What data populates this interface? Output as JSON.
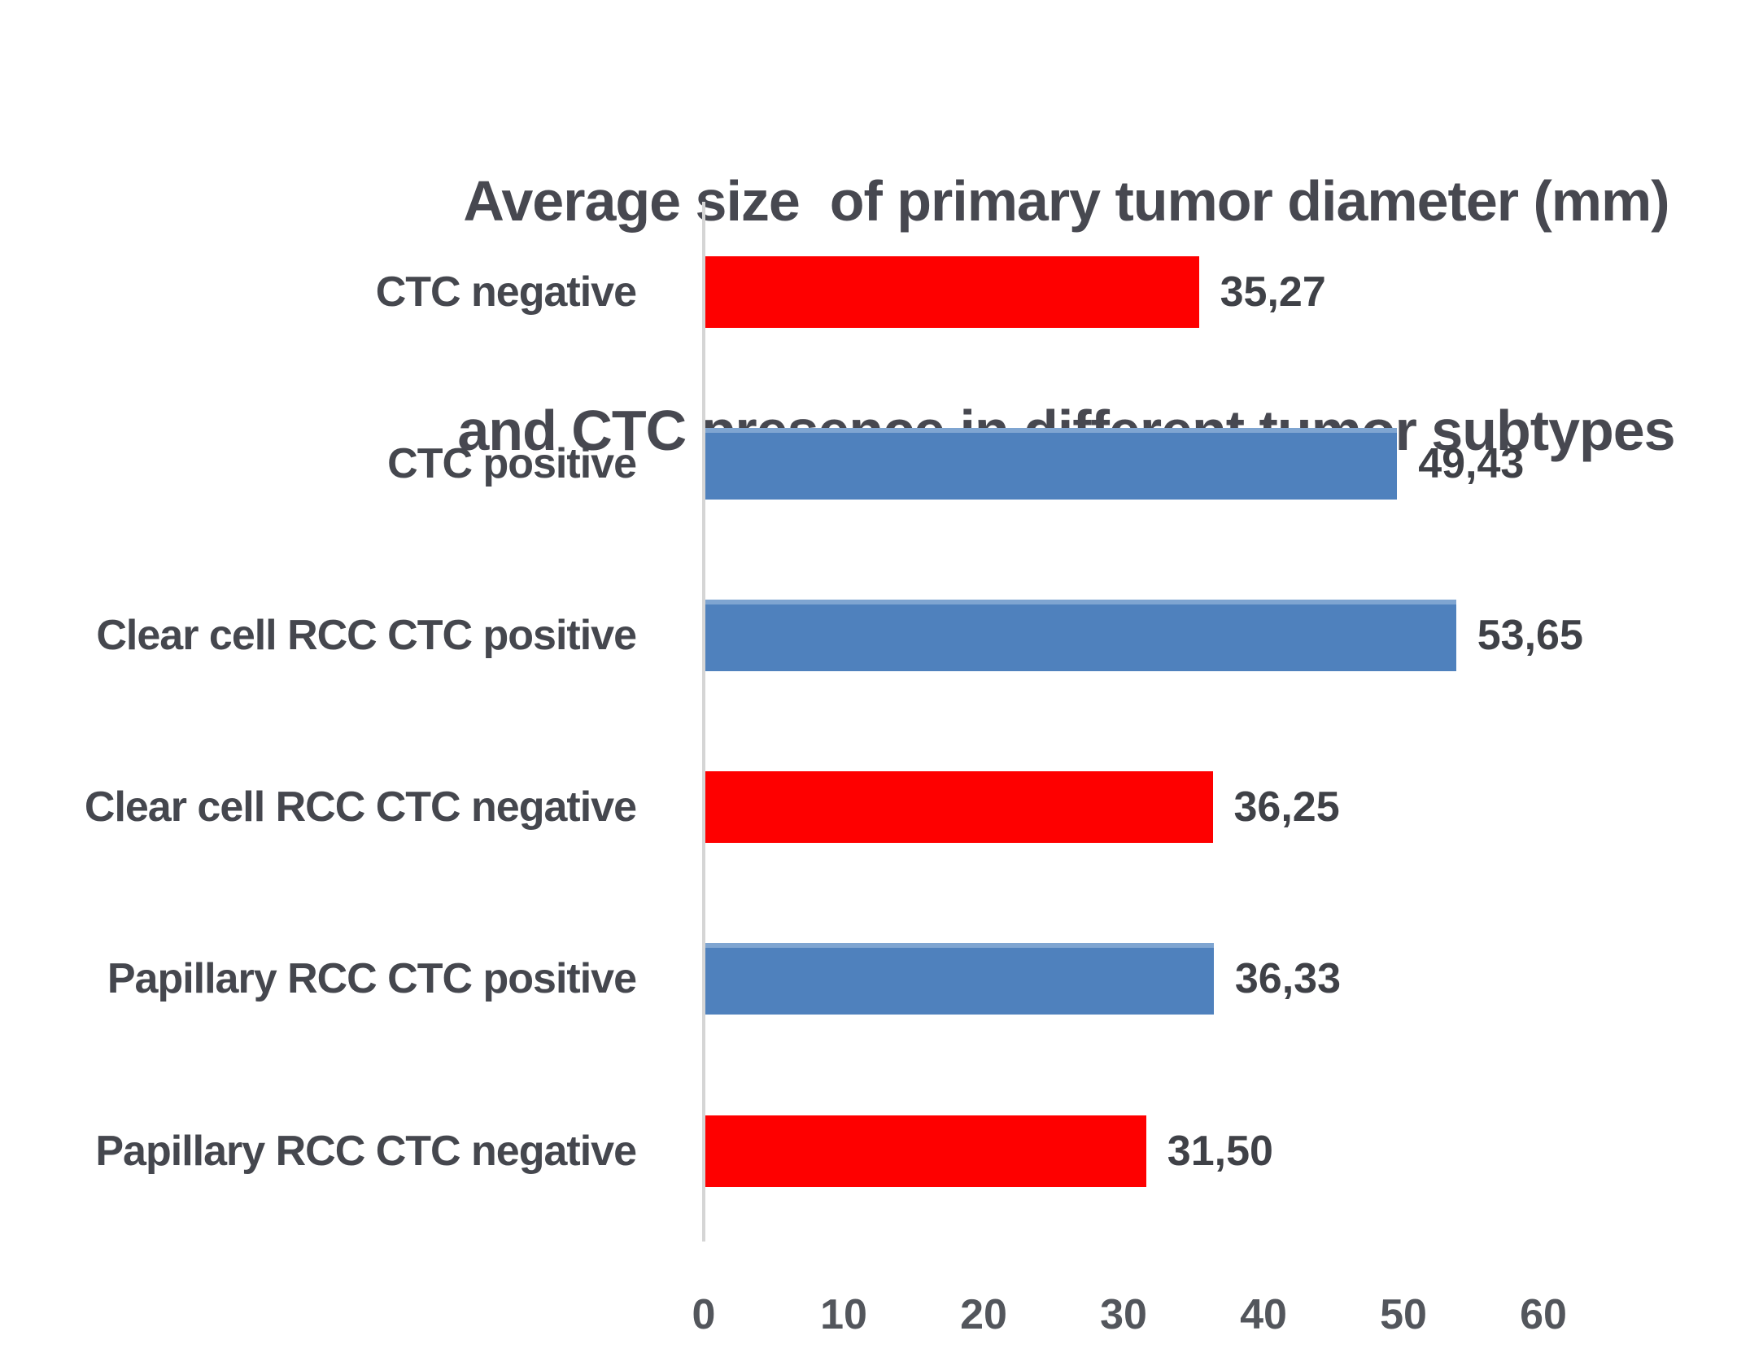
{
  "title": {
    "line1": "Average size  of primary tumor diameter (mm)",
    "line2": "and CTC presence in different tumor subtypes"
  },
  "chart_data": {
    "type": "bar",
    "orientation": "horizontal",
    "title": "Average size  of primary tumor diameter (mm) and CTC presence in different tumor subtypes",
    "categories": [
      "CTC negative",
      "CTC positive",
      "Clear cell RCC CTC positive",
      "Clear cell RCC CTC negative",
      "Papillary RCC CTC positive",
      "Papillary RCC CTC negative"
    ],
    "values": [
      35.27,
      49.43,
      53.65,
      36.25,
      36.33,
      31.5
    ],
    "value_labels": [
      "35,27",
      "49,43",
      "53,65",
      "36,25",
      "36,33",
      "31,50"
    ],
    "bar_colors": [
      "#fe0000",
      "#4f81bd",
      "#4f81bd",
      "#fe0000",
      "#4f81bd",
      "#fe0000"
    ],
    "xlabel": "",
    "ylabel": "",
    "xticks": [
      0,
      10,
      20,
      30,
      40,
      50,
      60
    ],
    "xlim": [
      0,
      60
    ],
    "grid": false,
    "legend": null,
    "colors": {
      "ctc_negative_red": "#fe0000",
      "ctc_positive_blue": "#4f81bd",
      "blue_top_edge": "#7fa5d1",
      "text_dark": "#45474e",
      "axis_line": "#d5d5d5"
    }
  }
}
